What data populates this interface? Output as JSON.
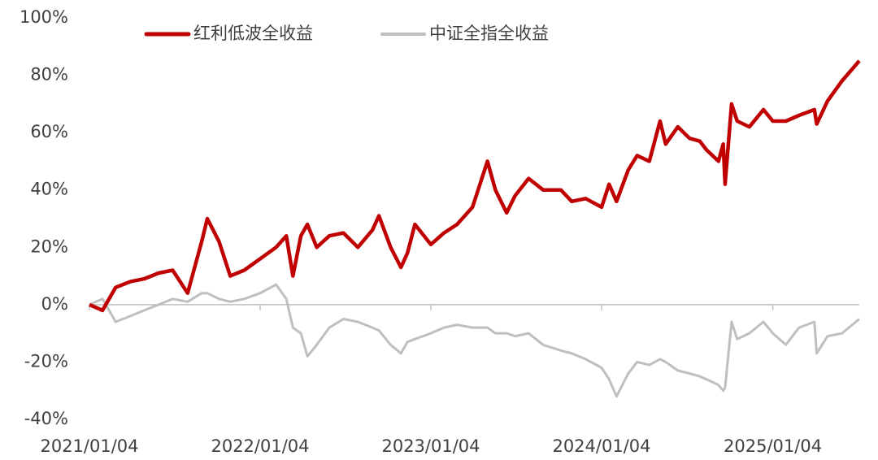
{
  "chart_data": {
    "type": "line",
    "x": [
      "2021/01/04",
      "2021/02/01",
      "2021/03/01",
      "2021/04/01",
      "2021/05/01",
      "2021/06/01",
      "2021/07/01",
      "2021/08/02",
      "2021/09/01",
      "2021/09/13",
      "2021/10/08",
      "2021/11/01",
      "2021/12/01",
      "2022/01/04",
      "2022/02/07",
      "2022/03/01",
      "2022/03/15",
      "2022/04/01",
      "2022/04/15",
      "2022/05/05",
      "2022/06/01",
      "2022/07/01",
      "2022/08/01",
      "2022/09/01",
      "2022/09/15",
      "2022/10/10",
      "2022/11/01",
      "2022/11/15",
      "2022/12/01",
      "2023/01/04",
      "2023/02/01",
      "2023/03/01",
      "2023/04/03",
      "2023/05/05",
      "2023/05/22",
      "2023/06/15",
      "2023/07/03",
      "2023/08/01",
      "2023/09/01",
      "2023/10/09",
      "2023/11/01",
      "2023/12/01",
      "2024/01/04",
      "2024/01/20",
      "2024/02/05",
      "2024/03/01",
      "2024/03/20",
      "2024/04/15",
      "2024/05/08",
      "2024/05/20",
      "2024/06/15",
      "2024/07/10",
      "2024/08/01",
      "2024/08/15",
      "2024/09/10",
      "2024/09/20",
      "2024/09/24",
      "2024/10/08",
      "2024/10/20",
      "2024/11/15",
      "2024/12/15",
      "2025/01/04",
      "2025/02/01",
      "2025/03/01",
      "2025/04/03",
      "2025/04/08",
      "2025/05/01",
      "2025/06/01",
      "2025/07/08"
    ],
    "series": [
      {
        "name": "红利低波全收益",
        "color": "#c00000",
        "values": [
          0,
          -2,
          6,
          8,
          9,
          11,
          12,
          4,
          22,
          30,
          22,
          10,
          12,
          16,
          20,
          24,
          10,
          24,
          28,
          20,
          24,
          25,
          20,
          26,
          31,
          20,
          13,
          18,
          28,
          21,
          25,
          28,
          34,
          50,
          40,
          32,
          38,
          44,
          40,
          40,
          36,
          37,
          34,
          42,
          36,
          47,
          52,
          50,
          64,
          56,
          62,
          58,
          57,
          54,
          50,
          56,
          42,
          70,
          64,
          62,
          68,
          64,
          64,
          66,
          68,
          63,
          71,
          78,
          85
        ]
      },
      {
        "name": "中证全指全收益",
        "color": "#bfbfbf",
        "values": [
          0,
          2,
          -6,
          -4,
          -2,
          0,
          2,
          1,
          4,
          4,
          2,
          1,
          2,
          4,
          7,
          2,
          -8,
          -10,
          -18,
          -14,
          -8,
          -5,
          -6,
          -8,
          -9,
          -14,
          -17,
          -13,
          -12,
          -10,
          -8,
          -7,
          -8,
          -8,
          -10,
          -10,
          -11,
          -10,
          -14,
          -16,
          -17,
          -19,
          -22,
          -26,
          -32,
          -24,
          -20,
          -21,
          -19,
          -20,
          -23,
          -24,
          -25,
          -26,
          -28,
          -30,
          -29,
          -6,
          -12,
          -10,
          -6,
          -10,
          -14,
          -8,
          -6,
          -17,
          -11,
          -10,
          -5
        ]
      }
    ],
    "xlim": [
      "2021/01/04",
      "2025/07/08"
    ],
    "xticks": [
      "2021/01/04",
      "2022/01/04",
      "2023/01/04",
      "2024/01/04",
      "2025/01/04"
    ],
    "ylim": [
      -40,
      100
    ],
    "yticks": [
      {
        "value": -40,
        "label": "-40%"
      },
      {
        "value": -20,
        "label": "-20%"
      },
      {
        "value": 0,
        "label": "0%"
      },
      {
        "value": 20,
        "label": "20%"
      },
      {
        "value": 40,
        "label": "40%"
      },
      {
        "value": 60,
        "label": "60%"
      },
      {
        "value": 80,
        "label": "80%"
      },
      {
        "value": 100,
        "label": "100%"
      }
    ],
    "legend": "top"
  }
}
